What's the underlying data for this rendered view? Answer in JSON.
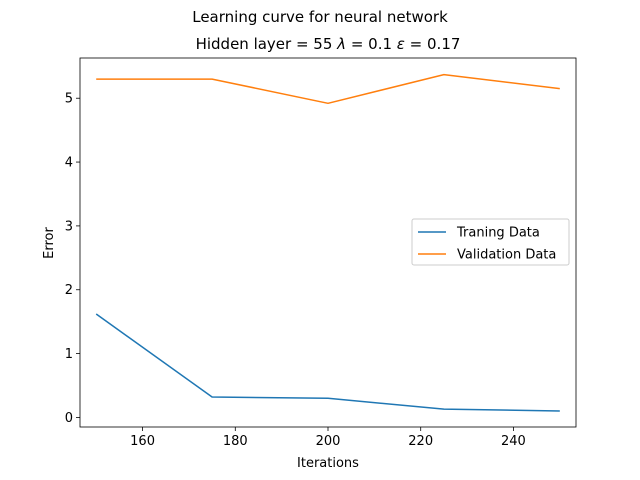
{
  "chart_data": {
    "type": "line",
    "suptitle": "Learning curve for neural network",
    "title_parts": [
      "Hidden layer = 55 ",
      "λ",
      " = 0.1 ",
      "ε",
      " = 0.17"
    ],
    "xlabel": "Iterations",
    "ylabel": "Error",
    "xlim": [
      146.5,
      253.5
    ],
    "ylim": [
      -0.15,
      5.63
    ],
    "xticks": [
      160,
      180,
      200,
      220,
      240
    ],
    "yticks": [
      0,
      1,
      2,
      3,
      4,
      5
    ],
    "x": [
      150,
      175,
      200,
      225,
      250
    ],
    "series": [
      {
        "name": "Traning Data",
        "color": "#1f77b4",
        "values": [
          1.62,
          0.32,
          0.3,
          0.13,
          0.1
        ]
      },
      {
        "name": "Validation Data",
        "color": "#ff7f0e",
        "values": [
          5.3,
          5.3,
          4.92,
          5.37,
          5.15
        ]
      }
    ],
    "legend_position": "center-right",
    "grid": false
  }
}
